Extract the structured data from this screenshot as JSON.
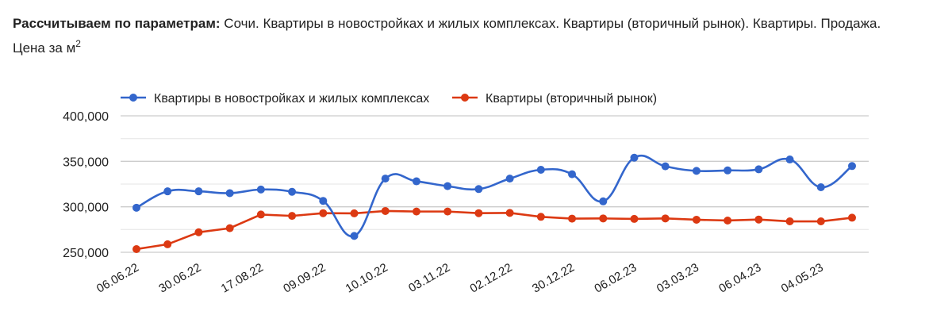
{
  "header": {
    "params_label": "Рассчитываем по параметрам:",
    "params_value": " Сочи. Квартиры в новостройках и жилых комплексах. Квартиры (вторичный рынок). Квартиры. Продажа.",
    "metric_label": "Цена за м",
    "metric_superscript": "2"
  },
  "colors": {
    "series_new": "#3366CC",
    "series_secondary": "#DC3912",
    "gridline_major": "#cccccc",
    "gridline_minor": "#ebebeb",
    "axis_text": "#222222"
  },
  "chart_data": {
    "type": "line",
    "title": "Цена за м2",
    "xlabel": "",
    "ylabel": "",
    "ylim": [
      250000,
      400000
    ],
    "yticks": [
      250000,
      300000,
      350000,
      400000
    ],
    "ytick_labels": [
      "250,000",
      "300,000",
      "350,000",
      "400,000"
    ],
    "grid": true,
    "legend_position": "top",
    "x_tick_labels": [
      "06.06.22",
      "30.06.22",
      "17.08.22",
      "09.09.22",
      "10.10.22",
      "03.11.22",
      "02.12.22",
      "30.12.22",
      "06.02.23",
      "03.03.23",
      "06.04.23",
      "04.05.23"
    ],
    "x_label_every": 2,
    "point_count": 24,
    "series": [
      {
        "name": "Квартиры в новостройках и жилых комплексах",
        "color": "#3366CC",
        "curve": "smooth",
        "values": [
          299000,
          317000,
          317000,
          315000,
          319000,
          316500,
          306500,
          268000,
          331000,
          328000,
          322700,
          319500,
          331000,
          340700,
          335800,
          306000,
          354000,
          344500,
          339500,
          340000,
          341200,
          352000,
          321500,
          344800
        ]
      },
      {
        "name": "Квартиры (вторичный рынок)",
        "color": "#DC3912",
        "curve": "straight",
        "values": [
          253500,
          258800,
          272000,
          276500,
          291500,
          290000,
          293000,
          292800,
          295400,
          294800,
          294800,
          293000,
          293300,
          289000,
          287000,
          287200,
          286700,
          287200,
          285800,
          284900,
          286000,
          284000,
          284000,
          288000
        ]
      }
    ]
  }
}
